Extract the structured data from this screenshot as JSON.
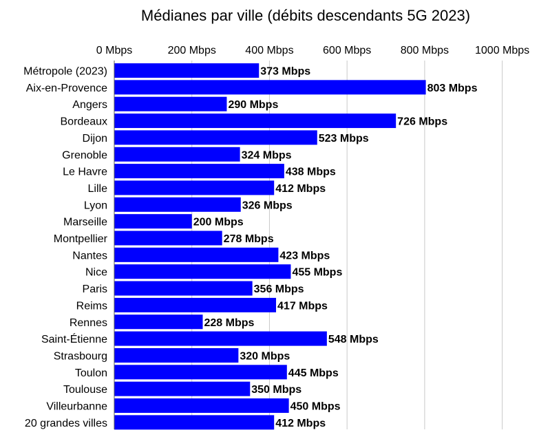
{
  "chart_data": {
    "type": "bar",
    "orientation": "horizontal",
    "title": "Médianes par ville (débits descendants 5G 2023)",
    "xlabel": "",
    "ylabel": "",
    "xlim": [
      0,
      1000
    ],
    "xticks": [
      0,
      200,
      400,
      600,
      800,
      1000
    ],
    "tick_format": "{v} Mbps",
    "value_format": "{v} Mbps",
    "axis_position": "top",
    "grid": true,
    "bar_color": "#0000ff",
    "categories": [
      "Métropole (2023)",
      "Aix-en-Provence",
      "Angers",
      "Bordeaux",
      "Dijon",
      "Grenoble",
      "Le Havre",
      "Lille",
      "Lyon",
      "Marseille",
      "Montpellier",
      "Nantes",
      "Nice",
      "Paris",
      "Reims",
      "Rennes",
      "Saint-Étienne",
      "Strasbourg",
      "Toulon",
      "Toulouse",
      "Villeurbanne",
      "20 grandes villes"
    ],
    "values": [
      373,
      803,
      290,
      726,
      523,
      324,
      438,
      412,
      326,
      200,
      278,
      423,
      455,
      356,
      417,
      228,
      548,
      320,
      445,
      350,
      450,
      412
    ]
  }
}
